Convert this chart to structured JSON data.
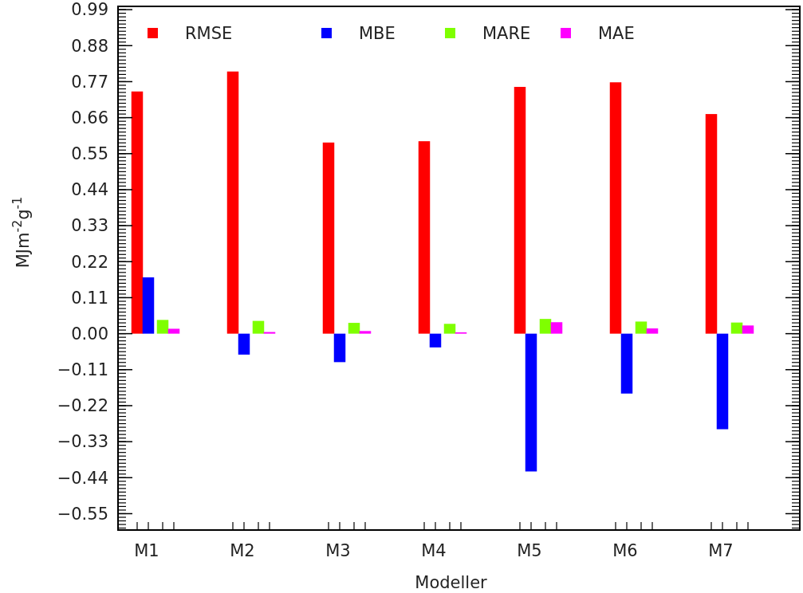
{
  "chart_data": {
    "type": "bar",
    "xlabel": "Modeller",
    "ylabel": "MJm$^{-2}$g$^{-1}$",
    "categories": [
      "M1",
      "M2",
      "M3",
      "M4",
      "M5",
      "M6",
      "M7"
    ],
    "series": [
      {
        "name": "RMSE",
        "color": "#ff0000",
        "values": [
          0.74,
          0.801,
          0.584,
          0.588,
          0.754,
          0.768,
          0.671
        ]
      },
      {
        "name": "MBE",
        "color": "#0000ff",
        "values": [
          0.172,
          -0.064,
          -0.087,
          -0.042,
          -0.421,
          -0.183,
          -0.292
        ]
      },
      {
        "name": "MARE",
        "color": "#7fff00",
        "values": [
          0.042,
          0.039,
          0.033,
          0.03,
          0.045,
          0.037,
          0.034
        ]
      },
      {
        "name": "MAE",
        "color": "#ff00ff",
        "values": [
          0.015,
          0.005,
          0.008,
          0.004,
          0.035,
          0.016,
          0.025
        ]
      }
    ],
    "ylim": [
      -0.6,
      1.0
    ],
    "yticks": [
      {
        "value": -0.55,
        "label": "−0.55"
      },
      {
        "value": -0.44,
        "label": "−0.44"
      },
      {
        "value": -0.33,
        "label": "−0.33"
      },
      {
        "value": -0.22,
        "label": "−0.22"
      },
      {
        "value": -0.11,
        "label": "−0.11"
      },
      {
        "value": 0,
        "label": "0.00"
      },
      {
        "value": 0.11,
        "label": "0.11"
      },
      {
        "value": 0.22,
        "label": "0.22"
      },
      {
        "value": 0.33,
        "label": "0.33"
      },
      {
        "value": 0.44,
        "label": "0.44"
      },
      {
        "value": 0.55,
        "label": "0.55"
      },
      {
        "value": 0.66,
        "label": "0.66"
      },
      {
        "value": 0.77,
        "label": "0.77"
      },
      {
        "value": 0.88,
        "label": "0.88"
      },
      {
        "value": 0.99,
        "label": "0.99"
      }
    ],
    "legend": "top",
    "grid": false
  }
}
